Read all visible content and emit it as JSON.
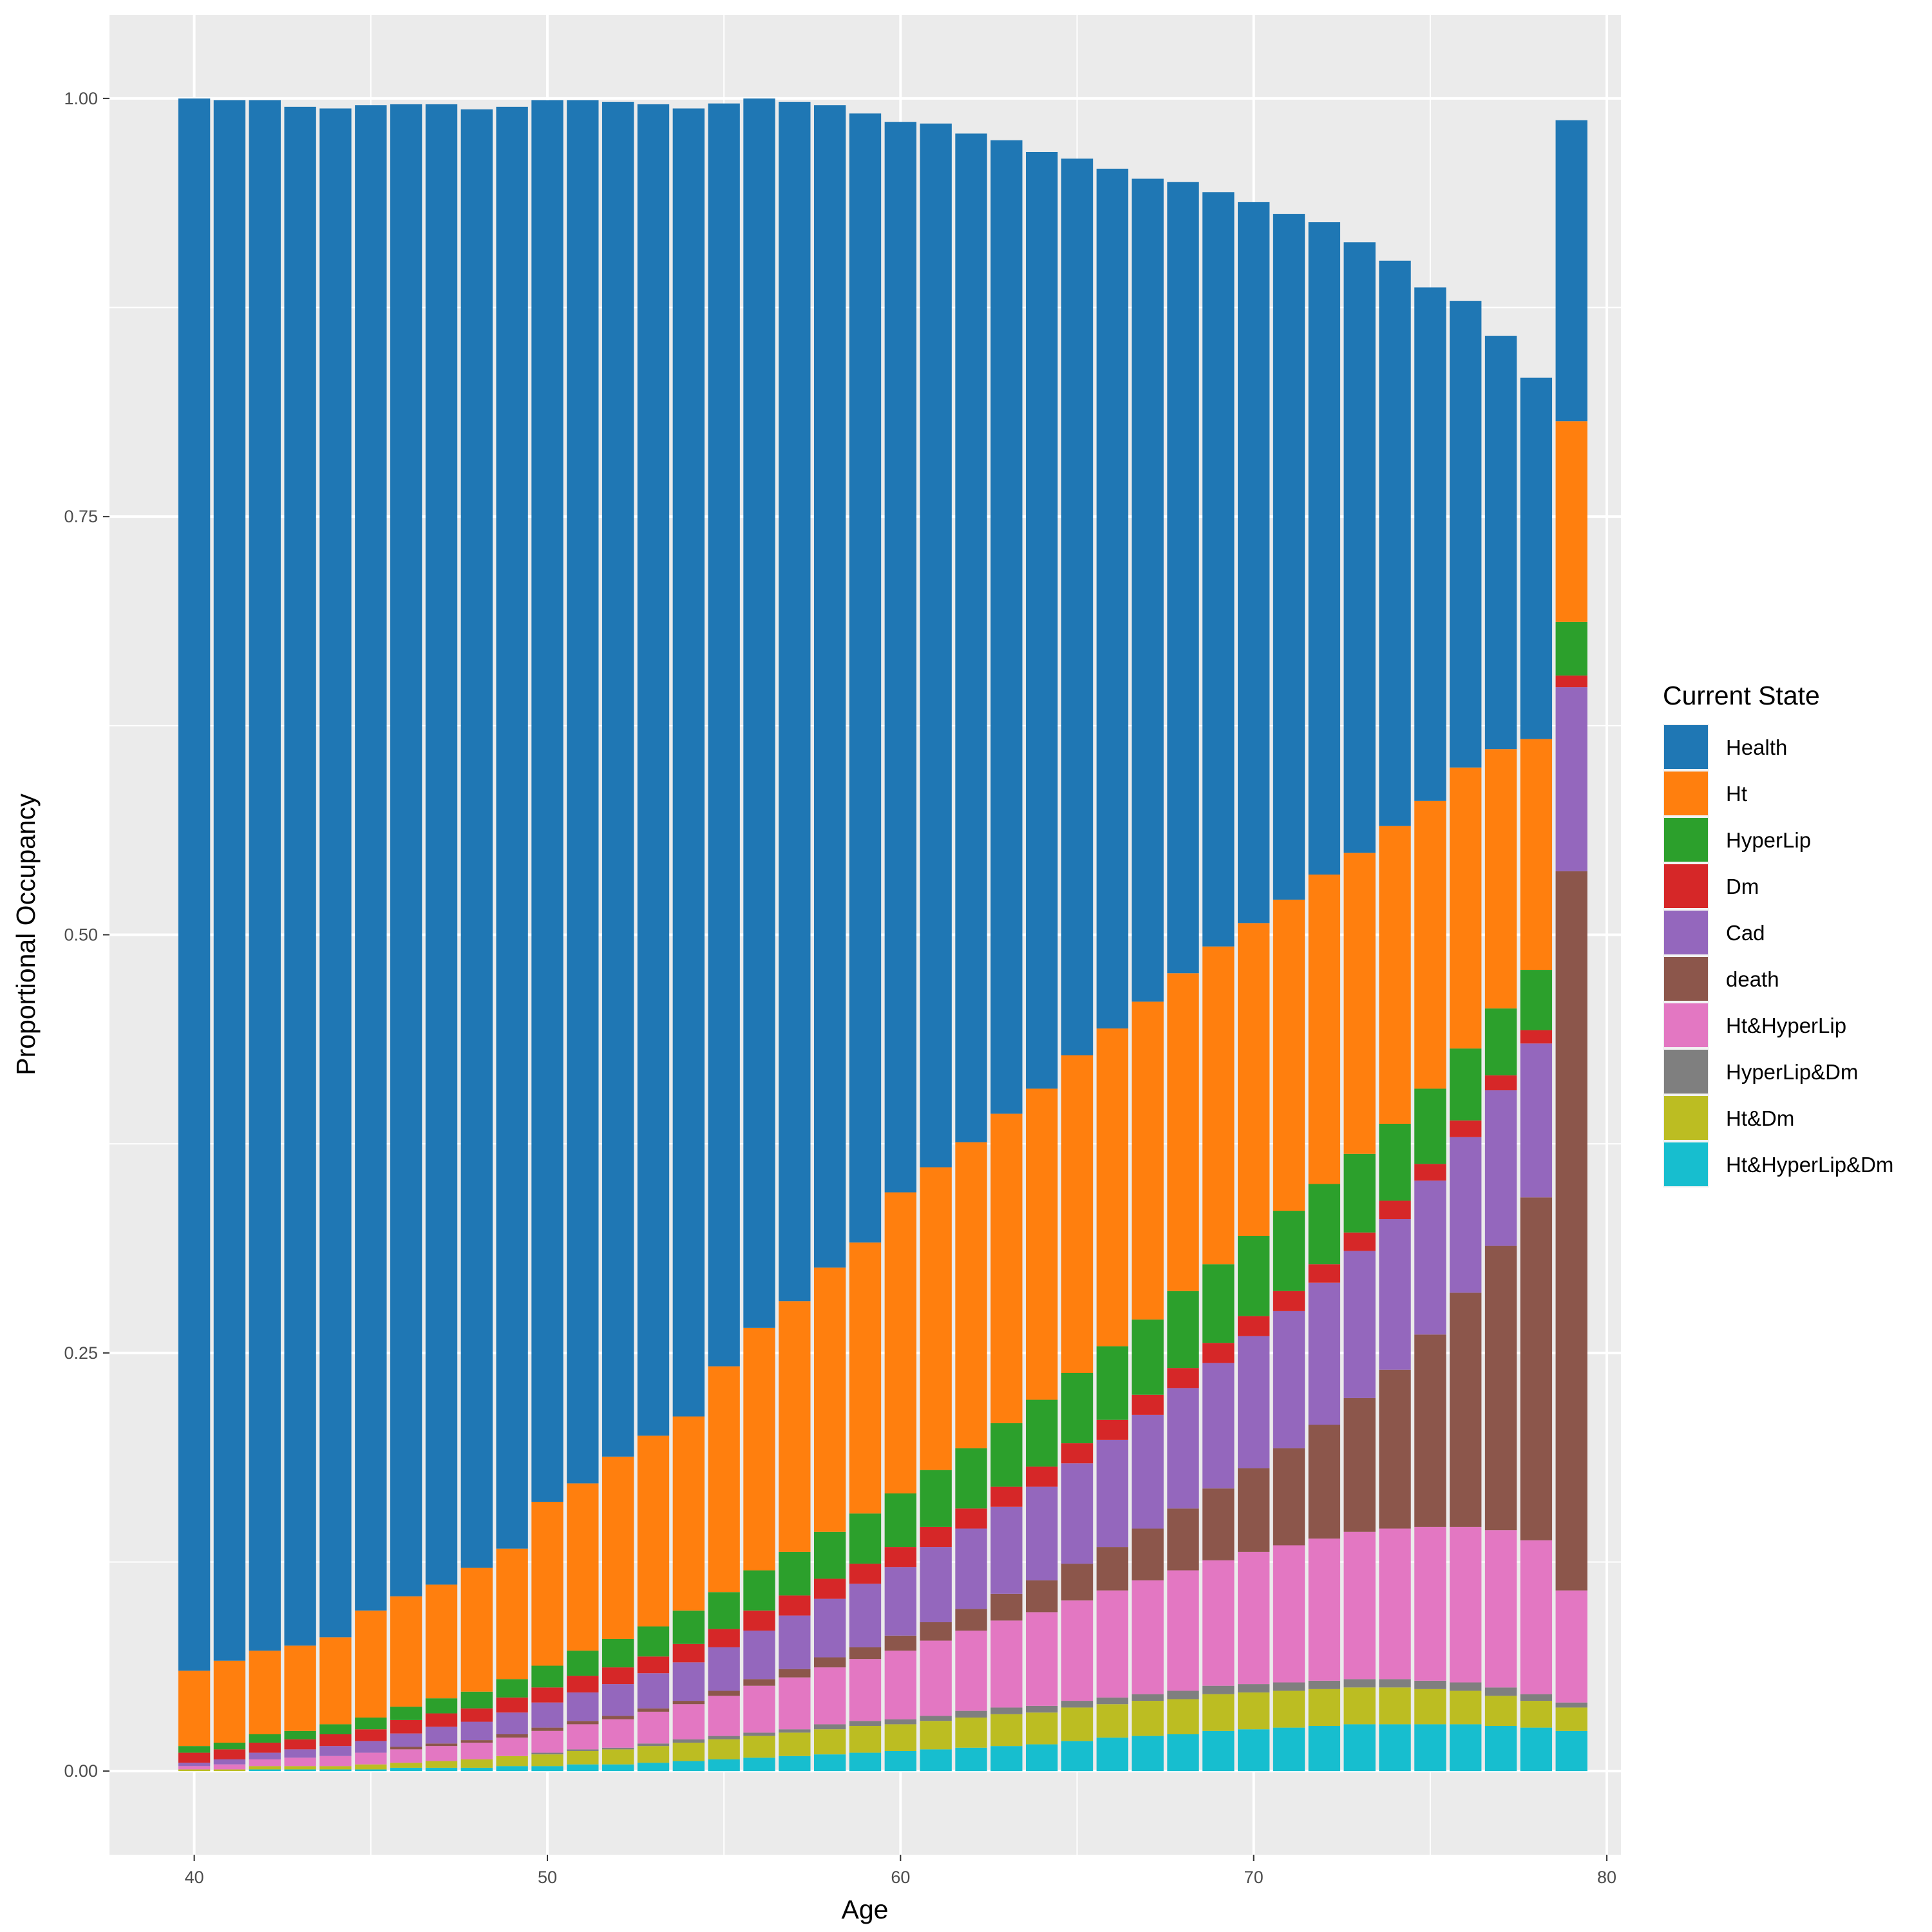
{
  "chart_data": {
    "type": "bar",
    "stacked": true,
    "xlabel": "Age",
    "ylabel": "Proportional Occupancy",
    "xlim": [
      37.6,
      80.4
    ],
    "ylim": [
      -0.05,
      1.05
    ],
    "x_ticks": [
      40,
      50,
      60,
      70,
      80
    ],
    "y_ticks": [
      "0.00",
      "0.25",
      "0.50",
      "0.75",
      "1.00"
    ],
    "y_tick_values": [
      0,
      0.25,
      0.5,
      0.75,
      1.0
    ],
    "grid": true,
    "legend_position": "right",
    "legend_title": "Current State",
    "x": [
      40,
      41,
      42,
      43,
      44,
      45,
      46,
      47,
      48,
      49,
      50,
      51,
      52,
      53,
      54,
      55,
      56,
      57,
      58,
      59,
      60,
      61,
      62,
      63,
      64,
      65,
      66,
      67,
      68,
      69,
      70,
      71,
      72,
      73,
      74,
      75,
      76,
      77,
      78,
      79
    ],
    "series": [
      {
        "name": "Health",
        "color": "#1F77B4",
        "values": [
          0.94,
          0.933,
          0.927,
          0.92,
          0.914,
          0.9,
          0.892,
          0.885,
          0.872,
          0.862,
          0.838,
          0.827,
          0.81,
          0.796,
          0.782,
          0.755,
          0.735,
          0.717,
          0.695,
          0.675,
          0.64,
          0.624,
          0.603,
          0.582,
          0.56,
          0.536,
          0.514,
          0.492,
          0.473,
          0.451,
          0.431,
          0.41,
          0.39,
          0.365,
          0.338,
          0.307,
          0.279,
          0.247,
          0.216,
          0.18
        ]
      },
      {
        "name": "Ht",
        "color": "#FF7F0E",
        "values": [
          0.045,
          0.049,
          0.05,
          0.051,
          0.052,
          0.064,
          0.066,
          0.068,
          0.074,
          0.078,
          0.098,
          0.1,
          0.109,
          0.114,
          0.116,
          0.135,
          0.145,
          0.15,
          0.158,
          0.162,
          0.18,
          0.181,
          0.183,
          0.185,
          0.186,
          0.19,
          0.19,
          0.19,
          0.19,
          0.19,
          0.187,
          0.186,
          0.185,
          0.18,
          0.178,
          0.172,
          0.168,
          0.155,
          0.138,
          0.12
        ]
      },
      {
        "name": "HyperLip",
        "color": "#2CA02C",
        "values": [
          0.004,
          0.004,
          0.005,
          0.005,
          0.006,
          0.007,
          0.008,
          0.009,
          0.01,
          0.011,
          0.013,
          0.015,
          0.017,
          0.018,
          0.02,
          0.022,
          0.024,
          0.026,
          0.028,
          0.03,
          0.032,
          0.034,
          0.036,
          0.038,
          0.04,
          0.042,
          0.044,
          0.045,
          0.046,
          0.047,
          0.048,
          0.048,
          0.048,
          0.047,
          0.046,
          0.045,
          0.043,
          0.04,
          0.036,
          0.032
        ]
      },
      {
        "name": "Dm",
        "color": "#D62728",
        "values": [
          0.006,
          0.006,
          0.006,
          0.006,
          0.007,
          0.007,
          0.008,
          0.008,
          0.008,
          0.009,
          0.009,
          0.01,
          0.01,
          0.01,
          0.011,
          0.011,
          0.012,
          0.012,
          0.012,
          0.012,
          0.012,
          0.012,
          0.012,
          0.012,
          0.012,
          0.012,
          0.012,
          0.012,
          0.012,
          0.012,
          0.012,
          0.012,
          0.011,
          0.011,
          0.011,
          0.01,
          0.01,
          0.009,
          0.008,
          0.007
        ]
      },
      {
        "name": "Cad",
        "color": "#9467BD",
        "values": [
          0.002,
          0.003,
          0.004,
          0.005,
          0.006,
          0.007,
          0.008,
          0.01,
          0.011,
          0.013,
          0.015,
          0.017,
          0.019,
          0.021,
          0.023,
          0.026,
          0.029,
          0.032,
          0.035,
          0.038,
          0.041,
          0.045,
          0.048,
          0.052,
          0.056,
          0.06,
          0.064,
          0.068,
          0.072,
          0.075,
          0.079,
          0.082,
          0.085,
          0.088,
          0.09,
          0.092,
          0.093,
          0.093,
          0.092,
          0.11
        ]
      },
      {
        "name": "death",
        "color": "#8C564B",
        "values": [
          0,
          0,
          0,
          0,
          0,
          0,
          0.0015,
          0.0015,
          0.0015,
          0.002,
          0.002,
          0.002,
          0.002,
          0.002,
          0.002,
          0.003,
          0.004,
          0.005,
          0.006,
          0.007,
          0.009,
          0.011,
          0.013,
          0.016,
          0.019,
          0.022,
          0.026,
          0.031,
          0.037,
          0.043,
          0.05,
          0.058,
          0.068,
          0.08,
          0.095,
          0.115,
          0.14,
          0.17,
          0.205,
          0.43
        ]
      },
      {
        "name": "Ht&HyperLip",
        "color": "#E377C2",
        "values": [
          0.002,
          0.003,
          0.004,
          0.005,
          0.006,
          0.007,
          0.008,
          0.009,
          0.01,
          0.011,
          0.013,
          0.015,
          0.017,
          0.019,
          0.021,
          0.024,
          0.028,
          0.031,
          0.034,
          0.037,
          0.041,
          0.045,
          0.048,
          0.052,
          0.056,
          0.06,
          0.064,
          0.068,
          0.072,
          0.075,
          0.079,
          0.082,
          0.085,
          0.088,
          0.09,
          0.092,
          0.093,
          0.094,
          0.092,
          0.067
        ]
      },
      {
        "name": "HyperLip&Dm",
        "color": "#7F7F7F",
        "values": [
          0,
          0,
          0,
          0,
          0,
          0,
          0,
          0,
          0,
          0,
          0.001,
          0.001,
          0.001,
          0.0015,
          0.002,
          0.002,
          0.002,
          0.002,
          0.003,
          0.003,
          0.003,
          0.003,
          0.004,
          0.004,
          0.004,
          0.004,
          0.004,
          0.004,
          0.005,
          0.005,
          0.005,
          0.005,
          0.005,
          0.005,
          0.005,
          0.005,
          0.005,
          0.005,
          0.004,
          0.003
        ]
      },
      {
        "name": "Ht&Dm",
        "color": "#BCBD22",
        "values": [
          0.001,
          0.001,
          0.002,
          0.002,
          0.002,
          0.003,
          0.003,
          0.004,
          0.005,
          0.006,
          0.007,
          0.008,
          0.009,
          0.01,
          0.011,
          0.012,
          0.013,
          0.014,
          0.015,
          0.016,
          0.016,
          0.017,
          0.018,
          0.019,
          0.019,
          0.02,
          0.02,
          0.021,
          0.021,
          0.022,
          0.022,
          0.022,
          0.022,
          0.022,
          0.022,
          0.021,
          0.02,
          0.018,
          0.016,
          0.014
        ]
      },
      {
        "name": "Ht&HyperLip&Dm",
        "color": "#17BECF",
        "values": [
          0,
          0,
          0.001,
          0.001,
          0.001,
          0.001,
          0.002,
          0.002,
          0.002,
          0.003,
          0.003,
          0.004,
          0.004,
          0.005,
          0.006,
          0.007,
          0.008,
          0.009,
          0.01,
          0.011,
          0.012,
          0.013,
          0.014,
          0.015,
          0.016,
          0.018,
          0.02,
          0.021,
          0.022,
          0.024,
          0.025,
          0.026,
          0.027,
          0.028,
          0.028,
          0.028,
          0.028,
          0.027,
          0.026,
          0.024
        ]
      }
    ]
  }
}
